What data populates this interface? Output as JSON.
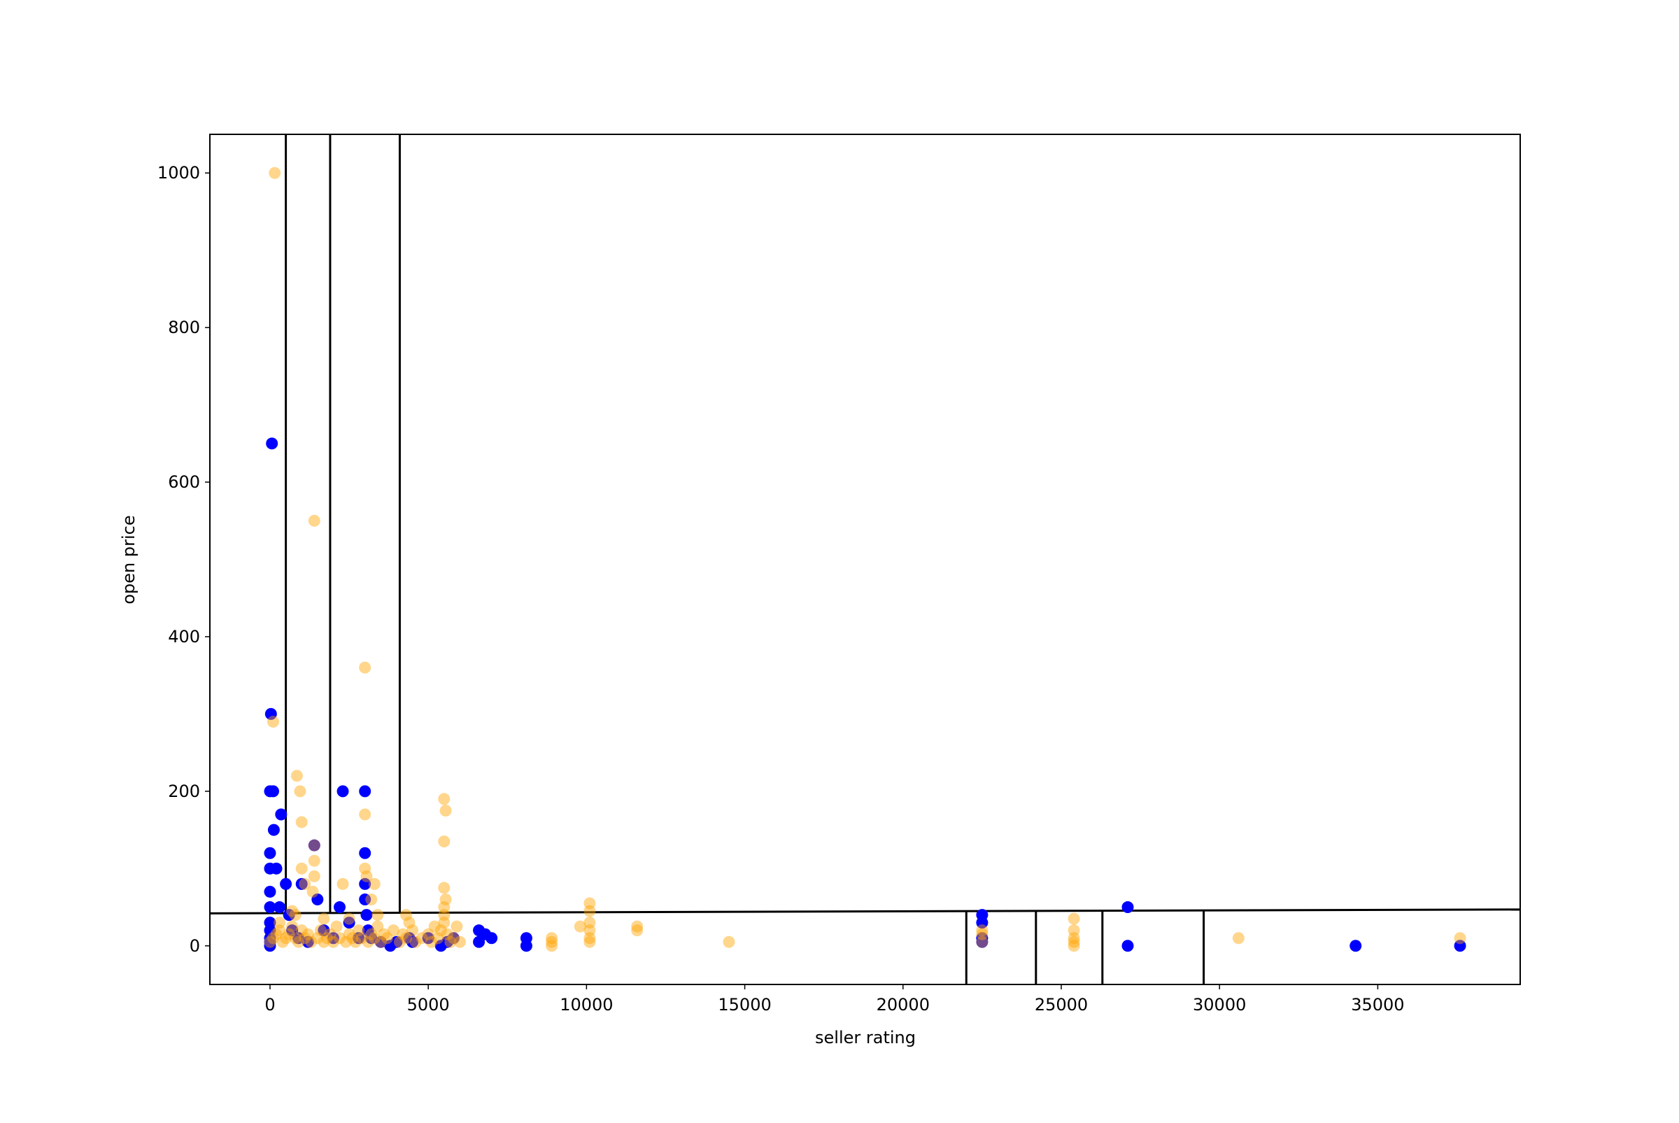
{
  "chart_data": {
    "type": "scatter",
    "title": "",
    "xlabel": "seller rating",
    "ylabel": "open price",
    "xlim": [
      -1900,
      39500
    ],
    "ylim": [
      -50,
      1050
    ],
    "xticks": [
      0,
      5000,
      10000,
      15000,
      20000,
      25000,
      30000,
      35000
    ],
    "yticks": [
      0,
      200,
      400,
      600,
      800,
      1000
    ],
    "grid": false,
    "legend": "none",
    "colors": {
      "blue": "#0000ff",
      "orange": "#ffa500",
      "lines": "#000000"
    },
    "series": [
      {
        "color": "#0000ff",
        "opacity": 1.0,
        "points": [
          [
            0,
            0
          ],
          [
            0,
            5
          ],
          [
            0,
            10
          ],
          [
            0,
            20
          ],
          [
            0,
            30
          ],
          [
            0,
            50
          ],
          [
            0,
            70
          ],
          [
            0,
            100
          ],
          [
            0,
            120
          ],
          [
            30,
            300
          ],
          [
            60,
            650
          ],
          [
            0,
            200
          ],
          [
            100,
            200
          ],
          [
            120,
            150
          ],
          [
            350,
            170
          ],
          [
            200,
            100
          ],
          [
            300,
            50
          ],
          [
            500,
            80
          ],
          [
            600,
            40
          ],
          [
            700,
            20
          ],
          [
            900,
            10
          ],
          [
            1000,
            80
          ],
          [
            1200,
            5
          ],
          [
            1400,
            130
          ],
          [
            1500,
            60
          ],
          [
            1700,
            20
          ],
          [
            2000,
            10
          ],
          [
            2200,
            50
          ],
          [
            2300,
            200
          ],
          [
            2500,
            30
          ],
          [
            2800,
            10
          ],
          [
            3000,
            200
          ],
          [
            3000,
            120
          ],
          [
            3000,
            80
          ],
          [
            3000,
            60
          ],
          [
            3050,
            40
          ],
          [
            3100,
            20
          ],
          [
            3200,
            10
          ],
          [
            3500,
            5
          ],
          [
            3800,
            0
          ],
          [
            4000,
            5
          ],
          [
            4400,
            10
          ],
          [
            4500,
            5
          ],
          [
            5000,
            10
          ],
          [
            5400,
            0
          ],
          [
            5600,
            5
          ],
          [
            5800,
            10
          ],
          [
            6600,
            20
          ],
          [
            6800,
            15
          ],
          [
            6600,
            5
          ],
          [
            7000,
            10
          ],
          [
            8100,
            10
          ],
          [
            8100,
            0
          ],
          [
            22500,
            40
          ],
          [
            22500,
            30
          ],
          [
            22500,
            10
          ],
          [
            22500,
            5
          ],
          [
            27100,
            50
          ],
          [
            27100,
            0
          ],
          [
            34300,
            0
          ],
          [
            37600,
            0
          ]
        ]
      },
      {
        "color": "#ffa500",
        "opacity": 0.45,
        "points": [
          [
            150,
            1000
          ],
          [
            1400,
            550
          ],
          [
            3000,
            360
          ],
          [
            100,
            290
          ],
          [
            850,
            220
          ],
          [
            950,
            200
          ],
          [
            1000,
            160
          ],
          [
            1400,
            130
          ],
          [
            1400,
            110
          ],
          [
            1400,
            90
          ],
          [
            1350,
            70
          ],
          [
            1000,
            100
          ],
          [
            1100,
            80
          ],
          [
            2300,
            80
          ],
          [
            3000,
            170
          ],
          [
            3000,
            100
          ],
          [
            3050,
            90
          ],
          [
            3300,
            80
          ],
          [
            3200,
            60
          ],
          [
            3400,
            40
          ],
          [
            4300,
            40
          ],
          [
            4400,
            30
          ],
          [
            5500,
            190
          ],
          [
            5550,
            175
          ],
          [
            5500,
            135
          ],
          [
            5500,
            75
          ],
          [
            5550,
            60
          ],
          [
            5500,
            50
          ],
          [
            5500,
            40
          ],
          [
            5500,
            30
          ],
          [
            5400,
            20
          ],
          [
            5900,
            25
          ],
          [
            6000,
            5
          ],
          [
            8900,
            10
          ],
          [
            8900,
            5
          ],
          [
            8900,
            0
          ],
          [
            9800,
            25
          ],
          [
            10100,
            55
          ],
          [
            10100,
            45
          ],
          [
            10100,
            30
          ],
          [
            10100,
            20
          ],
          [
            10100,
            10
          ],
          [
            10100,
            5
          ],
          [
            11600,
            25
          ],
          [
            11600,
            20
          ],
          [
            14500,
            5
          ],
          [
            22500,
            20
          ],
          [
            22500,
            15
          ],
          [
            22500,
            5
          ],
          [
            25400,
            35
          ],
          [
            25400,
            20
          ],
          [
            25400,
            10
          ],
          [
            25400,
            5
          ],
          [
            25400,
            0
          ],
          [
            30600,
            10
          ],
          [
            37600,
            10
          ],
          [
            0,
            5
          ],
          [
            100,
            10
          ],
          [
            200,
            15
          ],
          [
            300,
            20
          ],
          [
            400,
            5
          ],
          [
            500,
            10
          ],
          [
            600,
            15
          ],
          [
            700,
            25
          ],
          [
            800,
            10
          ],
          [
            900,
            5
          ],
          [
            1000,
            20
          ],
          [
            1100,
            10
          ],
          [
            1200,
            15
          ],
          [
            1300,
            5
          ],
          [
            1500,
            10
          ],
          [
            1600,
            20
          ],
          [
            1700,
            5
          ],
          [
            1800,
            10
          ],
          [
            1900,
            15
          ],
          [
            2000,
            5
          ],
          [
            2100,
            25
          ],
          [
            2200,
            10
          ],
          [
            2400,
            5
          ],
          [
            2500,
            15
          ],
          [
            2600,
            10
          ],
          [
            2700,
            5
          ],
          [
            2800,
            20
          ],
          [
            2900,
            10
          ],
          [
            3100,
            5
          ],
          [
            3200,
            15
          ],
          [
            3300,
            10
          ],
          [
            3400,
            25
          ],
          [
            3500,
            5
          ],
          [
            3600,
            15
          ],
          [
            3700,
            10
          ],
          [
            3900,
            20
          ],
          [
            4100,
            5
          ],
          [
            4200,
            15
          ],
          [
            4300,
            10
          ],
          [
            4500,
            20
          ],
          [
            4600,
            5
          ],
          [
            4800,
            10
          ],
          [
            5000,
            15
          ],
          [
            5100,
            5
          ],
          [
            5200,
            25
          ],
          [
            5300,
            10
          ],
          [
            5600,
            15
          ],
          [
            5700,
            5
          ],
          [
            5800,
            10
          ],
          [
            2500,
            35
          ],
          [
            1700,
            35
          ],
          [
            800,
            40
          ],
          [
            700,
            45
          ],
          [
            300,
            30
          ]
        ]
      }
    ],
    "split_lines": {
      "vertical_full": [
        500,
        1900,
        4100
      ],
      "horizontal": {
        "x": [
          -1900,
          39500
        ],
        "y": [
          42,
          47
        ]
      },
      "vertical_lower": [
        22000,
        24200,
        26300,
        29500
      ]
    }
  }
}
